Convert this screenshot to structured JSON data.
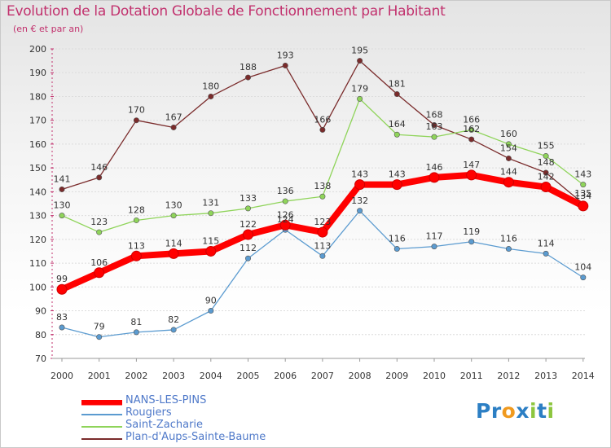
{
  "header": {
    "title": "Evolution de la Dotation Globale de Fonctionnement par Habitant",
    "subtitle": "(en € et par an)"
  },
  "logo": {
    "text": "Proxiti",
    "letters": [
      "P",
      "r",
      "o",
      "x",
      "i",
      "t",
      "i"
    ],
    "colors": [
      "#2c7fc4",
      "#2c7fc4",
      "#f09a1f",
      "#2c7fc4",
      "#8dc63f",
      "#2c7fc4",
      "#8dc63f"
    ]
  },
  "chart_data": {
    "type": "line",
    "title": "Evolution de la Dotation Globale de Fonctionnement par Habitant",
    "xlabel": "",
    "ylabel": "(en € et par an)",
    "ylim": [
      70,
      200
    ],
    "yticks": [
      70,
      80,
      90,
      100,
      110,
      120,
      130,
      140,
      150,
      160,
      170,
      180,
      190,
      200
    ],
    "grid": "horizontal",
    "legend_position": "bottom-left",
    "categories": [
      "2000",
      "2001",
      "2002",
      "2003",
      "2004",
      "2005",
      "2006",
      "2007",
      "2008",
      "2009",
      "2010",
      "2011",
      "2012",
      "2013",
      "2014"
    ],
    "series": [
      {
        "name": "Plan-d'Aups-Sainte-Baume",
        "color": "#7a2b2b",
        "values": [
          141,
          146,
          170,
          167,
          180,
          188,
          193,
          166,
          195,
          181,
          168,
          162,
          154,
          148,
          135
        ]
      },
      {
        "name": "Saint-Zacharie",
        "color": "#8fd45a",
        "values": [
          130,
          123,
          128,
          130,
          131,
          133,
          136,
          138,
          179,
          164,
          163,
          166,
          160,
          155,
          143
        ]
      },
      {
        "name": "Rougiers",
        "color": "#5b9bd0",
        "values": [
          83,
          79,
          81,
          82,
          90,
          112,
          124,
          113,
          132,
          116,
          117,
          119,
          116,
          114,
          104
        ]
      },
      {
        "name": "NANS-LES-PINS",
        "color": "#ff0000",
        "values": [
          99,
          106,
          113,
          114,
          115,
          122,
          126,
          123,
          143,
          143,
          146,
          147,
          144,
          142,
          134
        ]
      }
    ],
    "legend": [
      "NANS-LES-PINS",
      "Rougiers",
      "Saint-Zacharie",
      "Plan-d'Aups-Sainte-Baume"
    ]
  }
}
